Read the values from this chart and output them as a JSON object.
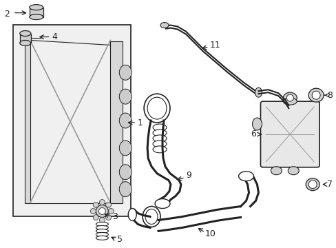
{
  "background_color": "#ffffff",
  "line_color": "#222222",
  "gray_light": "#cccccc",
  "gray_mid": "#aaaaaa",
  "gray_fill": "#e0e0e0",
  "fig_width": 4.89,
  "fig_height": 3.6,
  "dpi": 100
}
